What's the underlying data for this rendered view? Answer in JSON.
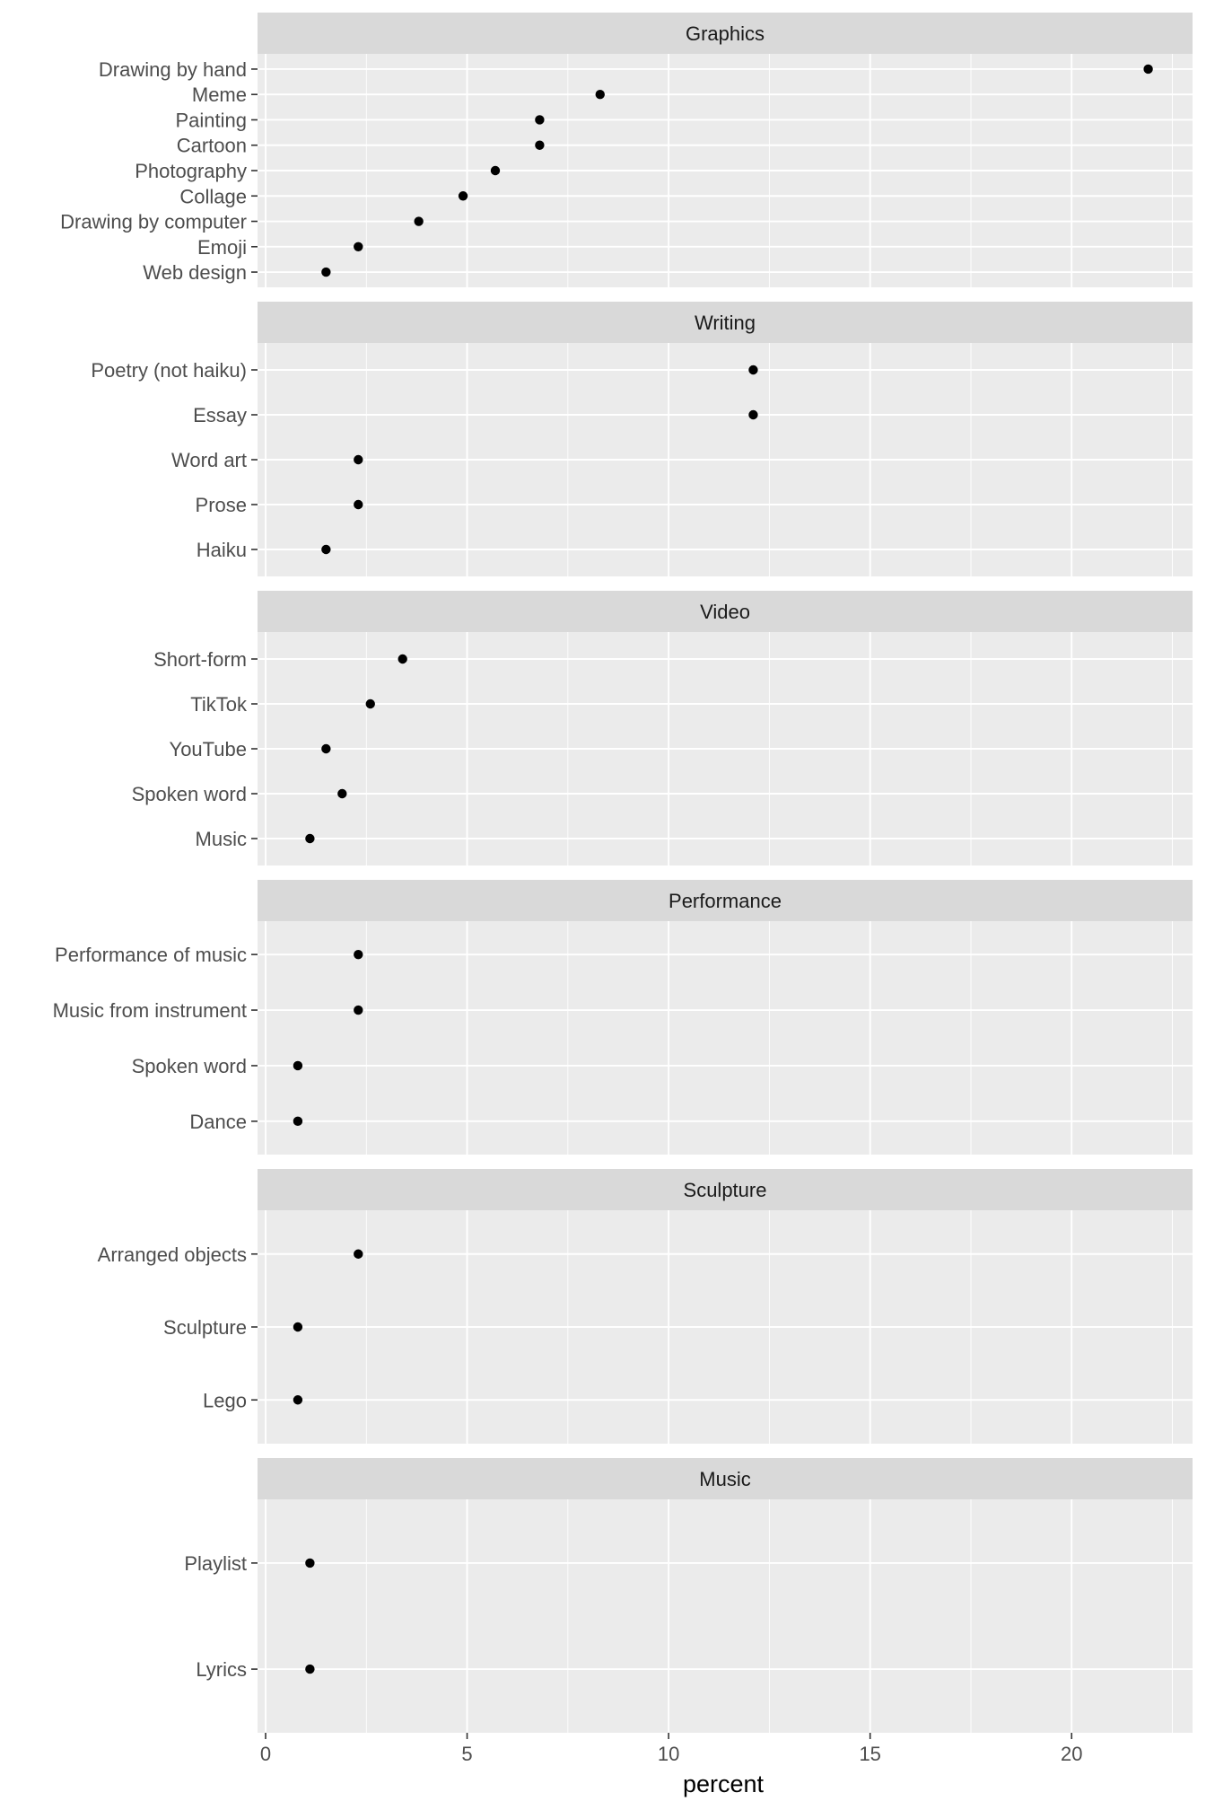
{
  "chart_data": {
    "type": "scatter",
    "xlabel": "percent",
    "xlim": [
      -0.2,
      23
    ],
    "x_ticks": [
      0,
      5,
      10,
      15,
      20
    ],
    "grid": true,
    "facets": [
      {
        "title": "Graphics",
        "points": [
          {
            "label": "Drawing by hand",
            "value": 21.9
          },
          {
            "label": "Meme",
            "value": 8.3
          },
          {
            "label": "Painting",
            "value": 6.8
          },
          {
            "label": "Cartoon",
            "value": 6.8
          },
          {
            "label": "Photography",
            "value": 5.7
          },
          {
            "label": "Collage",
            "value": 4.9
          },
          {
            "label": "Drawing by computer",
            "value": 3.8
          },
          {
            "label": "Emoji",
            "value": 2.3
          },
          {
            "label": "Web design",
            "value": 1.5
          }
        ]
      },
      {
        "title": "Writing",
        "points": [
          {
            "label": "Poetry (not haiku)",
            "value": 12.1
          },
          {
            "label": "Essay",
            "value": 12.1
          },
          {
            "label": "Word art",
            "value": 2.3
          },
          {
            "label": "Prose",
            "value": 2.3
          },
          {
            "label": "Haiku",
            "value": 1.5
          }
        ]
      },
      {
        "title": "Video",
        "points": [
          {
            "label": "Short-form",
            "value": 3.4
          },
          {
            "label": "TikTok",
            "value": 2.6
          },
          {
            "label": "YouTube",
            "value": 1.5
          },
          {
            "label": "Spoken word",
            "value": 1.9
          },
          {
            "label": "Music",
            "value": 1.1
          }
        ]
      },
      {
        "title": "Performance",
        "points": [
          {
            "label": "Performance of music",
            "value": 2.3
          },
          {
            "label": "Music from instrument",
            "value": 2.3
          },
          {
            "label": "Spoken word",
            "value": 0.8
          },
          {
            "label": "Dance",
            "value": 0.8
          }
        ]
      },
      {
        "title": "Sculpture",
        "points": [
          {
            "label": "Arranged objects",
            "value": 2.3
          },
          {
            "label": "Sculpture",
            "value": 0.8
          },
          {
            "label": "Lego",
            "value": 0.8
          }
        ]
      },
      {
        "title": "Music",
        "points": [
          {
            "label": "Playlist",
            "value": 1.1
          },
          {
            "label": "Lyrics",
            "value": 1.1
          }
        ]
      }
    ]
  },
  "colors": {
    "panel_background": "#ebebeb",
    "strip_background": "#d9d9d9",
    "grid_line": "#ffffff",
    "point": "#000000",
    "tick_mark": "#333333"
  }
}
